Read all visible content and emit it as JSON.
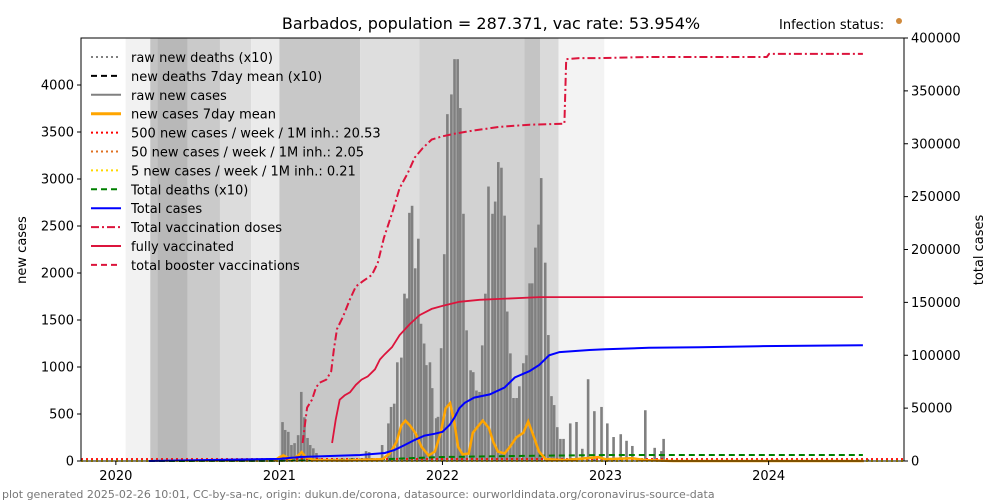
{
  "chart_data": {
    "type": "bar+line",
    "title": "Barbados, population = 287.371, vac rate: 53.954%",
    "infection_status_label": "Infection status:",
    "infection_status_color": "#d08a3c",
    "ylabel_left": "new cases",
    "ylabel_right": "total cases",
    "footer": "plot generated 2025-02-26 10:01, CC-by-sa-nc, origin: dukun.de/corona, datasource: ourworldindata.org/coronavirus-source-data",
    "xlim": [
      "2019-10-15",
      "2024-10-30"
    ],
    "xticks": [
      "2020",
      "2021",
      "2022",
      "2023",
      "2024"
    ],
    "ylim_left": [
      0,
      4500
    ],
    "yticks_left": [
      0,
      500,
      1000,
      1500,
      2000,
      2500,
      3000,
      3500,
      4000
    ],
    "ylim_right": [
      0,
      400000
    ],
    "yticks_right": [
      0,
      50000,
      100000,
      150000,
      200000,
      250000,
      300000,
      350000,
      400000
    ],
    "grid": false,
    "legend_placement": "top-left",
    "legend": [
      {
        "label": "raw new deaths (x10)",
        "color": "#808080",
        "style": "dotted"
      },
      {
        "label": "new deaths 7day mean (x10)",
        "color": "#000000",
        "style": "dashed"
      },
      {
        "label": "raw new cases",
        "color": "#808080",
        "style": "solid"
      },
      {
        "label": "new cases 7day mean",
        "color": "#ffa500",
        "style": "solid-thick"
      },
      {
        "label": "500 new cases / week / 1M inh.: 20.53",
        "color": "#ff0000",
        "style": "dotted"
      },
      {
        "label": "50 new cases / week / 1M inh.: 2.05",
        "color": "#e07020",
        "style": "dotted"
      },
      {
        "label": "5 new cases / week / 1M inh.: 0.21",
        "color": "#ffd700",
        "style": "dotted"
      },
      {
        "label": "Total deaths (x10)",
        "color": "#008000",
        "style": "dashed"
      },
      {
        "label": "Total cases",
        "color": "#0000ff",
        "style": "solid"
      },
      {
        "label": "Total vaccination doses",
        "color": "#dc143c",
        "style": "dashdot"
      },
      {
        "label": "fully vaccinated",
        "color": "#dc143c",
        "style": "solid"
      },
      {
        "label": "total booster vaccinations",
        "color": "#dc143c",
        "style": "dashed"
      }
    ],
    "thresholds": [
      {
        "value": 20.53,
        "color": "#ff0000"
      },
      {
        "value": 2.05,
        "color": "#e07020"
      },
      {
        "value": 0.21,
        "color": "#ffd700"
      }
    ],
    "infection_status_bands": [
      {
        "start": "2020-01-23",
        "end": "2020-03-18",
        "shade": "#f2f2f2"
      },
      {
        "start": "2020-03-18",
        "end": "2020-04-03",
        "shade": "#c4c4c4"
      },
      {
        "start": "2020-04-03",
        "end": "2020-06-10",
        "shade": "#b8b8b8"
      },
      {
        "start": "2020-06-10",
        "end": "2020-08-21",
        "shade": "#cacaca"
      },
      {
        "start": "2020-08-21",
        "end": "2020-10-30",
        "shade": "#dcdcdc"
      },
      {
        "start": "2020-10-30",
        "end": "2021-01-01",
        "shade": "#ebebeb"
      },
      {
        "start": "2021-01-01",
        "end": "2021-07-01",
        "shade": "#c8c8c8"
      },
      {
        "start": "2021-07-01",
        "end": "2021-11-10",
        "shade": "#dedede"
      },
      {
        "start": "2021-11-10",
        "end": "2022-07-03",
        "shade": "#d2d2d2"
      },
      {
        "start": "2022-07-03",
        "end": "2022-08-08",
        "shade": "#c4c4c4"
      },
      {
        "start": "2022-08-08",
        "end": "2022-09-18",
        "shade": "#dadada"
      },
      {
        "start": "2022-09-18",
        "end": "2022-12-29",
        "shade": "#f3f3f3"
      }
    ],
    "raw_new_cases": [
      [
        "2021-01-08",
        414
      ],
      [
        "2021-01-14",
        330
      ],
      [
        "2021-01-21",
        310
      ],
      [
        "2021-01-28",
        170
      ],
      [
        "2021-02-04",
        190
      ],
      [
        "2021-02-12",
        275
      ],
      [
        "2021-02-19",
        735
      ],
      [
        "2021-02-26",
        465
      ],
      [
        "2021-03-05",
        245
      ],
      [
        "2021-03-11",
        170
      ],
      [
        "2021-03-18",
        135
      ],
      [
        "2021-03-25",
        85
      ],
      [
        "2021-04-01",
        30
      ],
      [
        "2021-04-23",
        15
      ],
      [
        "2021-05-15",
        10
      ],
      [
        "2021-06-11",
        15
      ],
      [
        "2021-07-14",
        105
      ],
      [
        "2021-07-21",
        95
      ],
      [
        "2021-08-19",
        170
      ],
      [
        "2021-09-02",
        400
      ],
      [
        "2021-09-08",
        575
      ],
      [
        "2021-09-15",
        610
      ],
      [
        "2021-09-22",
        1050
      ],
      [
        "2021-10-01",
        1100
      ],
      [
        "2021-10-08",
        1780
      ],
      [
        "2021-10-14",
        1730
      ],
      [
        "2021-10-19",
        2640
      ],
      [
        "2021-10-25",
        2715
      ],
      [
        "2021-11-01",
        2050
      ],
      [
        "2021-11-08",
        2365
      ],
      [
        "2021-11-14",
        1460
      ],
      [
        "2021-11-21",
        1250
      ],
      [
        "2021-11-26",
        1020
      ],
      [
        "2021-12-04",
        1050
      ],
      [
        "2021-12-09",
        775
      ],
      [
        "2021-12-18",
        455
      ],
      [
        "2021-12-22",
        470
      ],
      [
        "2021-12-29",
        1200
      ],
      [
        "2022-01-05",
        2200
      ],
      [
        "2022-01-12",
        3690
      ],
      [
        "2022-01-21",
        3900
      ],
      [
        "2022-01-28",
        4275
      ],
      [
        "2022-02-04",
        4275
      ],
      [
        "2022-02-10",
        3755
      ],
      [
        "2022-02-17",
        2630
      ],
      [
        "2022-02-24",
        1390
      ],
      [
        "2022-03-05",
        965
      ],
      [
        "2022-03-11",
        945
      ],
      [
        "2022-03-18",
        750
      ],
      [
        "2022-03-25",
        735
      ],
      [
        "2022-03-31",
        1230
      ],
      [
        "2022-04-07",
        1780
      ],
      [
        "2022-04-14",
        2920
      ],
      [
        "2022-04-23",
        2630
      ],
      [
        "2022-04-29",
        2760
      ],
      [
        "2022-05-06",
        3180
      ],
      [
        "2022-05-13",
        3120
      ],
      [
        "2022-05-20",
        2610
      ],
      [
        "2022-05-26",
        1590
      ],
      [
        "2022-06-02",
        1145
      ],
      [
        "2022-06-09",
        670
      ],
      [
        "2022-06-16",
        670
      ],
      [
        "2022-06-22",
        795
      ],
      [
        "2022-07-01",
        1040
      ],
      [
        "2022-07-08",
        1125
      ],
      [
        "2022-07-15",
        1890
      ],
      [
        "2022-07-21",
        1890
      ],
      [
        "2022-07-28",
        2270
      ],
      [
        "2022-08-04",
        2515
      ],
      [
        "2022-08-10",
        3010
      ],
      [
        "2022-08-19",
        2110
      ],
      [
        "2022-08-26",
        1340
      ],
      [
        "2022-09-02",
        690
      ],
      [
        "2022-09-08",
        595
      ],
      [
        "2022-09-15",
        360
      ],
      [
        "2022-09-22",
        235
      ],
      [
        "2022-09-29",
        235
      ],
      [
        "2022-10-14",
        400
      ],
      [
        "2022-10-28",
        415
      ],
      [
        "2022-11-10",
        130
      ],
      [
        "2022-11-23",
        870
      ],
      [
        "2022-12-07",
        530
      ],
      [
        "2022-12-23",
        575
      ],
      [
        "2023-01-05",
        400
      ],
      [
        "2023-01-19",
        255
      ],
      [
        "2023-02-04",
        285
      ],
      [
        "2023-02-17",
        215
      ],
      [
        "2023-03-02",
        160
      ],
      [
        "2023-03-31",
        540
      ],
      [
        "2023-04-21",
        140
      ],
      [
        "2023-05-06",
        105
      ],
      [
        "2023-05-11",
        235
      ],
      [
        "2024-01-10",
        15
      ],
      [
        "2024-01-20",
        20
      ],
      [
        "2024-06-15",
        10
      ],
      [
        "2024-07-20",
        15
      ],
      [
        "2024-08-10",
        20
      ]
    ],
    "new_cases_7day_mean": [
      [
        "2020-12-20",
        0
      ],
      [
        "2021-01-01",
        40
      ],
      [
        "2021-01-10",
        60
      ],
      [
        "2021-01-25",
        20
      ],
      [
        "2021-02-10",
        50
      ],
      [
        "2021-02-20",
        95
      ],
      [
        "2021-03-01",
        40
      ],
      [
        "2021-03-20",
        10
      ],
      [
        "2021-06-01",
        5
      ],
      [
        "2021-08-20",
        20
      ],
      [
        "2021-09-05",
        80
      ],
      [
        "2021-09-20",
        200
      ],
      [
        "2021-10-01",
        380
      ],
      [
        "2021-10-10",
        430
      ],
      [
        "2021-10-20",
        380
      ],
      [
        "2021-11-01",
        300
      ],
      [
        "2021-11-15",
        150
      ],
      [
        "2021-12-01",
        60
      ],
      [
        "2021-12-15",
        100
      ],
      [
        "2021-12-28",
        300
      ],
      [
        "2022-01-08",
        560
      ],
      [
        "2022-01-18",
        615
      ],
      [
        "2022-01-28",
        400
      ],
      [
        "2022-02-05",
        150
      ],
      [
        "2022-02-15",
        70
      ],
      [
        "2022-03-01",
        80
      ],
      [
        "2022-03-10",
        300
      ],
      [
        "2022-03-20",
        360
      ],
      [
        "2022-04-01",
        430
      ],
      [
        "2022-04-15",
        350
      ],
      [
        "2022-04-25",
        200
      ],
      [
        "2022-05-05",
        100
      ],
      [
        "2022-05-20",
        80
      ],
      [
        "2022-06-01",
        150
      ],
      [
        "2022-06-15",
        250
      ],
      [
        "2022-07-01",
        300
      ],
      [
        "2022-07-12",
        420
      ],
      [
        "2022-07-25",
        250
      ],
      [
        "2022-08-05",
        100
      ],
      [
        "2022-08-20",
        20
      ],
      [
        "2022-10-01",
        10
      ],
      [
        "2022-12-15",
        40
      ],
      [
        "2023-01-01",
        20
      ],
      [
        "2023-03-01",
        30
      ],
      [
        "2023-04-01",
        10
      ],
      [
        "2023-06-01",
        0
      ],
      [
        "2024-08-01",
        0
      ]
    ],
    "total_cases": [
      [
        "2020-03-15",
        0
      ],
      [
        "2021-01-01",
        2000
      ],
      [
        "2021-02-16",
        3800
      ],
      [
        "2021-07-01",
        5700
      ],
      [
        "2021-08-25",
        7600
      ],
      [
        "2021-09-16",
        10500
      ],
      [
        "2021-10-08",
        15000
      ],
      [
        "2021-10-31",
        20000
      ],
      [
        "2021-11-22",
        24000
      ],
      [
        "2021-12-14",
        25700
      ],
      [
        "2022-01-01",
        27600
      ],
      [
        "2022-01-17",
        34000
      ],
      [
        "2022-01-28",
        41000
      ],
      [
        "2022-02-08",
        50000
      ],
      [
        "2022-02-20",
        55000
      ],
      [
        "2022-03-13",
        60000
      ],
      [
        "2022-04-17",
        63000
      ],
      [
        "2022-05-20",
        69500
      ],
      [
        "2022-06-12",
        79000
      ],
      [
        "2022-07-15",
        85000
      ],
      [
        "2022-08-06",
        91000
      ],
      [
        "2022-08-28",
        100000
      ],
      [
        "2022-09-20",
        103000
      ],
      [
        "2022-11-26",
        105000
      ],
      [
        "2023-01-01",
        105700
      ],
      [
        "2023-04-08",
        107000
      ],
      [
        "2023-07-30",
        107600
      ],
      [
        "2023-12-10",
        108600
      ],
      [
        "2024-07-30",
        109500
      ]
    ],
    "total_deaths_x10": [
      [
        "2020-03-15",
        0
      ],
      [
        "2021-01-01",
        200
      ],
      [
        "2021-09-01",
        1900
      ],
      [
        "2022-01-01",
        3800
      ],
      [
        "2022-07-01",
        4800
      ],
      [
        "2023-01-01",
        5700
      ],
      [
        "2024-07-30",
        5700
      ]
    ],
    "total_vaccination_doses": [
      [
        "2021-02-22",
        17000
      ],
      [
        "2021-03-04",
        50500
      ],
      [
        "2021-03-15",
        58000
      ],
      [
        "2021-03-24",
        69500
      ],
      [
        "2021-04-01",
        74000
      ],
      [
        "2021-04-16",
        77000
      ],
      [
        "2021-04-27",
        84800
      ],
      [
        "2021-05-03",
        105700
      ],
      [
        "2021-05-10",
        124800
      ],
      [
        "2021-05-23",
        136000
      ],
      [
        "2021-06-08",
        153000
      ],
      [
        "2021-06-21",
        165000
      ],
      [
        "2021-07-07",
        170000
      ],
      [
        "2021-07-27",
        176000
      ],
      [
        "2021-08-09",
        187000
      ],
      [
        "2021-08-23",
        211000
      ],
      [
        "2021-09-10",
        234000
      ],
      [
        "2021-09-27",
        258000
      ],
      [
        "2021-10-15",
        272000
      ],
      [
        "2021-10-31",
        287000
      ],
      [
        "2021-11-18",
        296000
      ],
      [
        "2021-12-08",
        304000
      ],
      [
        "2022-01-01",
        307000
      ],
      [
        "2022-01-28",
        309500
      ],
      [
        "2022-03-03",
        312000
      ],
      [
        "2022-05-10",
        316000
      ],
      [
        "2022-07-15",
        318000
      ],
      [
        "2022-10-01",
        319000
      ],
      [
        "2022-10-05",
        380000
      ],
      [
        "2022-11-03",
        381000
      ],
      [
        "2022-12-18",
        381000
      ],
      [
        "2023-04-08",
        382000
      ],
      [
        "2023-07-30",
        382000
      ],
      [
        "2023-12-28",
        382000
      ],
      [
        "2024-01-02",
        385000
      ],
      [
        "2024-07-30",
        385000
      ]
    ],
    "fully_vaccinated": [
      [
        "2021-04-29",
        17000
      ],
      [
        "2021-05-07",
        39000
      ],
      [
        "2021-05-16",
        58000
      ],
      [
        "2021-05-27",
        62000
      ],
      [
        "2021-06-08",
        65000
      ],
      [
        "2021-06-21",
        72000
      ],
      [
        "2021-07-04",
        77000
      ],
      [
        "2021-07-18",
        80000
      ],
      [
        "2021-08-03",
        86700
      ],
      [
        "2021-08-14",
        96000
      ],
      [
        "2021-08-25",
        101000
      ],
      [
        "2021-09-10",
        107600
      ],
      [
        "2021-09-27",
        119000
      ],
      [
        "2021-10-20",
        129500
      ],
      [
        "2021-11-11",
        138000
      ],
      [
        "2021-12-08",
        143800
      ],
      [
        "2022-01-01",
        146700
      ],
      [
        "2022-02-08",
        150500
      ],
      [
        "2022-03-25",
        152400
      ],
      [
        "2022-05-10",
        153300
      ],
      [
        "2022-08-06",
        155000
      ],
      [
        "2022-12-18",
        155000
      ],
      [
        "2024-07-30",
        155000
      ]
    ]
  }
}
